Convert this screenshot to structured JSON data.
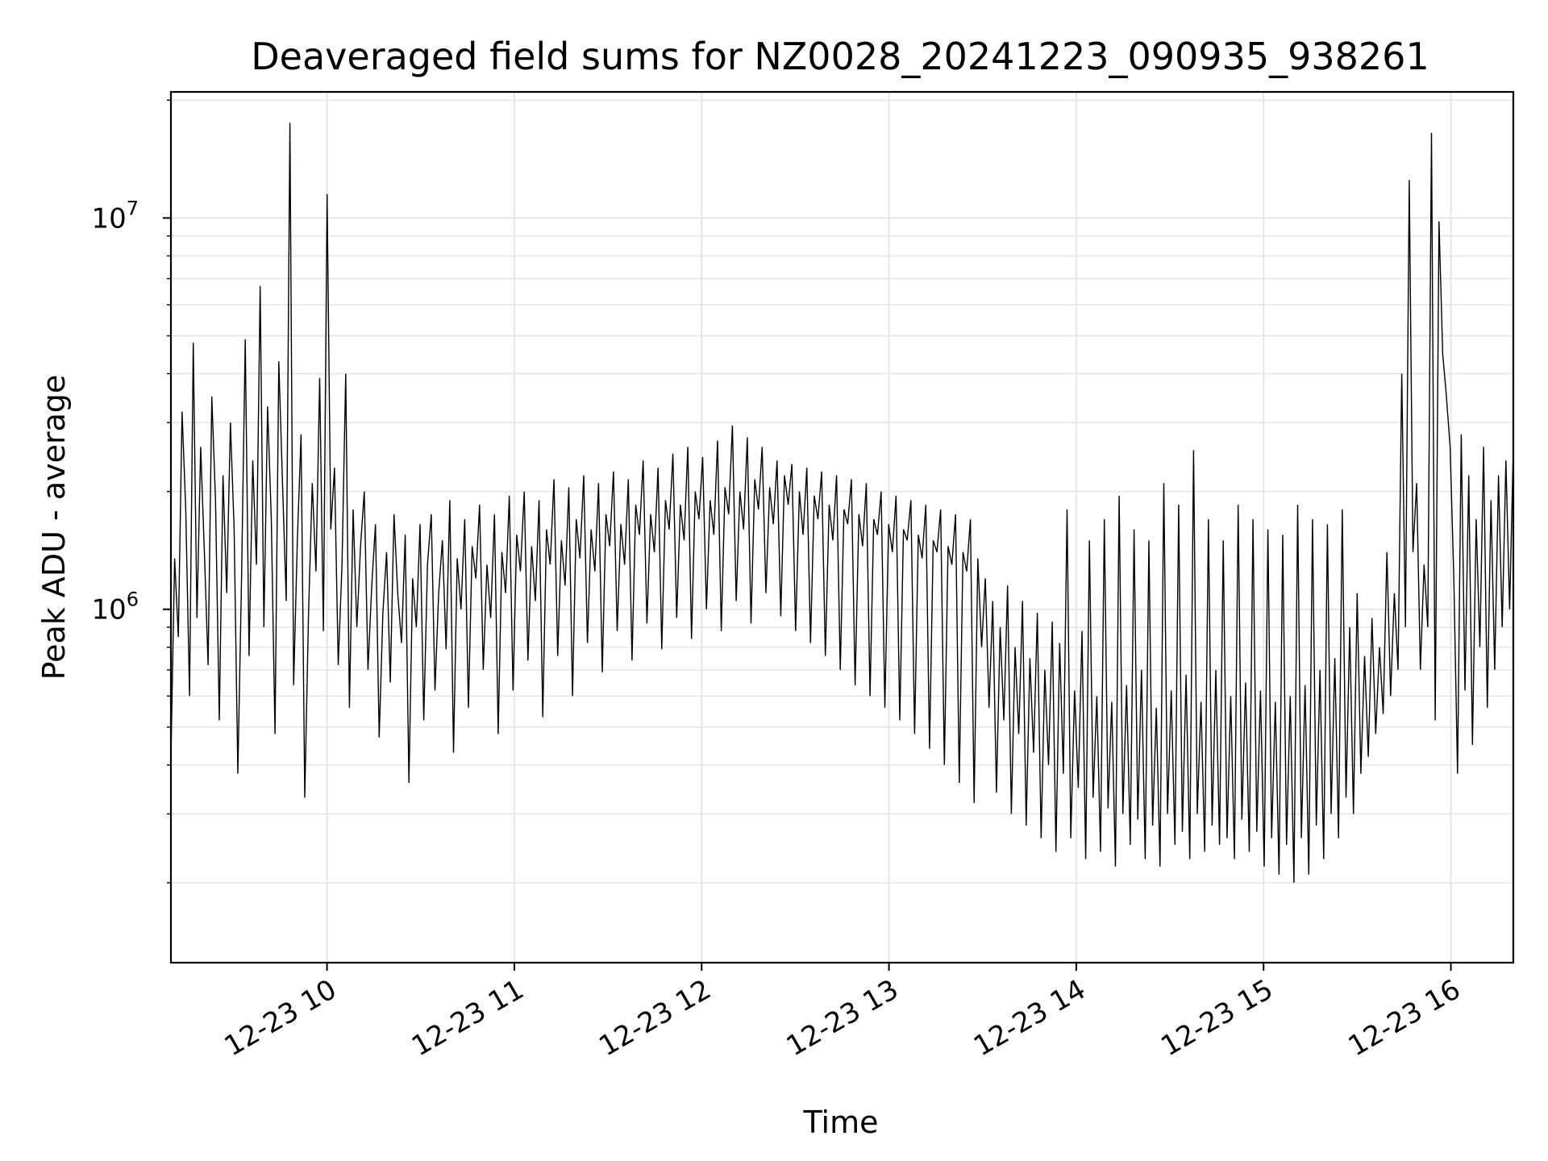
{
  "chart_data": {
    "type": "line",
    "title": "Deaveraged field sums for NZ0028_20241223_090935_938261",
    "xlabel": "Time",
    "ylabel": "Peak ADU - average",
    "yscale": "log",
    "xlim": [
      "2024-12-23T09:10",
      "2024-12-23T16:20"
    ],
    "ylim": [
      125000,
      21000000
    ],
    "grid": true,
    "x_ticks": [
      {
        "value": "2024-12-23T10:00",
        "label": "12-23 10"
      },
      {
        "value": "2024-12-23T11:00",
        "label": "12-23 11"
      },
      {
        "value": "2024-12-23T12:00",
        "label": "12-23 12"
      },
      {
        "value": "2024-12-23T13:00",
        "label": "12-23 13"
      },
      {
        "value": "2024-12-23T14:00",
        "label": "12-23 14"
      },
      {
        "value": "2024-12-23T15:00",
        "label": "12-23 15"
      },
      {
        "value": "2024-12-23T16:00",
        "label": "12-23 16"
      }
    ],
    "y_ticks": [
      {
        "value": 1000000,
        "base": "10",
        "exp": "6"
      },
      {
        "value": 10000000,
        "base": "10",
        "exp": "7"
      }
    ],
    "series": [
      {
        "color": "#000000",
        "x_start": "2024-12-23T09:10",
        "x_end": "2024-12-23T16:20",
        "y": [
          420000,
          1350000,
          850000,
          3200000,
          1800000,
          600000,
          4800000,
          950000,
          2600000,
          1400000,
          720000,
          3500000,
          1900000,
          520000,
          2200000,
          1100000,
          3000000,
          1600000,
          380000,
          1200000,
          4900000,
          760000,
          2400000,
          1300000,
          6700000,
          900000,
          3300000,
          1700000,
          480000,
          4300000,
          2100000,
          1050000,
          17500000,
          640000,
          1500000,
          2800000,
          330000,
          980000,
          2100000,
          1250000,
          3900000,
          880000,
          11500000,
          1600000,
          2300000,
          720000,
          1300000,
          4000000,
          560000,
          1800000,
          900000,
          1450000,
          2000000,
          700000,
          1150000,
          1650000,
          470000,
          980000,
          1400000,
          650000,
          1750000,
          1100000,
          820000,
          1550000,
          360000,
          1200000,
          900000,
          1650000,
          520000,
          1300000,
          1750000,
          620000,
          1100000,
          1500000,
          790000,
          1900000,
          430000,
          1350000,
          1000000,
          1700000,
          560000,
          1450000,
          1200000,
          1850000,
          700000,
          1300000,
          950000,
          1750000,
          480000,
          1400000,
          1100000,
          1950000,
          620000,
          1550000,
          1250000,
          2000000,
          740000,
          1450000,
          1050000,
          1900000,
          530000,
          1600000,
          1300000,
          2150000,
          760000,
          1500000,
          1150000,
          2050000,
          600000,
          1700000,
          1350000,
          2200000,
          820000,
          1600000,
          1250000,
          2100000,
          690000,
          1750000,
          1450000,
          2250000,
          880000,
          1650000,
          1300000,
          2150000,
          740000,
          1850000,
          1550000,
          2400000,
          920000,
          1750000,
          1400000,
          2300000,
          790000,
          1900000,
          1600000,
          2500000,
          950000,
          1850000,
          1500000,
          2600000,
          840000,
          2000000,
          1700000,
          2450000,
          1000000,
          1900000,
          1550000,
          2700000,
          880000,
          2050000,
          1750000,
          2950000,
          1050000,
          2000000,
          1600000,
          2750000,
          920000,
          2150000,
          1800000,
          2600000,
          1100000,
          2050000,
          1650000,
          2400000,
          960000,
          2200000,
          1850000,
          2350000,
          880000,
          2000000,
          1550000,
          2300000,
          820000,
          1950000,
          1700000,
          2250000,
          760000,
          1850000,
          1500000,
          2200000,
          700000,
          1800000,
          1650000,
          2150000,
          640000,
          1750000,
          1450000,
          2100000,
          600000,
          1700000,
          1550000,
          2000000,
          560000,
          1650000,
          1400000,
          1950000,
          520000,
          1600000,
          1500000,
          1900000,
          480000,
          1550000,
          1350000,
          1850000,
          440000,
          1500000,
          1400000,
          1800000,
          400000,
          1450000,
          1300000,
          1750000,
          360000,
          1400000,
          1250000,
          1700000,
          320000,
          1350000,
          800000,
          1200000,
          560000,
          1050000,
          340000,
          900000,
          520000,
          1150000,
          300000,
          800000,
          480000,
          1050000,
          280000,
          750000,
          430000,
          980000,
          260000,
          700000,
          400000,
          930000,
          240000,
          820000,
          380000,
          1800000,
          260000,
          620000,
          350000,
          880000,
          230000,
          1500000,
          330000,
          600000,
          240000,
          1700000,
          310000,
          580000,
          220000,
          1950000,
          300000,
          640000,
          250000,
          1600000,
          290000,
          700000,
          230000,
          1500000,
          280000,
          560000,
          220000,
          2100000,
          300000,
          620000,
          250000,
          1850000,
          270000,
          680000,
          230000,
          2550000,
          300000,
          580000,
          240000,
          1700000,
          280000,
          700000,
          250000,
          1500000,
          260000,
          600000,
          230000,
          1850000,
          290000,
          650000,
          240000,
          1700000,
          270000,
          620000,
          220000,
          1600000,
          260000,
          580000,
          210000,
          1550000,
          250000,
          600000,
          200000,
          1850000,
          260000,
          640000,
          210000,
          1700000,
          280000,
          700000,
          230000,
          1650000,
          300000,
          750000,
          260000,
          1800000,
          330000,
          900000,
          300000,
          1100000,
          380000,
          760000,
          420000,
          950000,
          480000,
          800000,
          540000,
          1400000,
          600000,
          1100000,
          700000,
          4000000,
          900000,
          12500000,
          1400000,
          2100000,
          700000,
          1300000,
          900000,
          16500000,
          520000,
          9800000,
          4500000,
          3500000,
          2600000,
          1200000,
          380000,
          2800000,
          620000,
          2200000,
          450000,
          1700000,
          800000,
          2600000,
          560000,
          1900000,
          700000,
          2200000,
          900000,
          2400000,
          1000000,
          2600000
        ]
      }
    ]
  }
}
